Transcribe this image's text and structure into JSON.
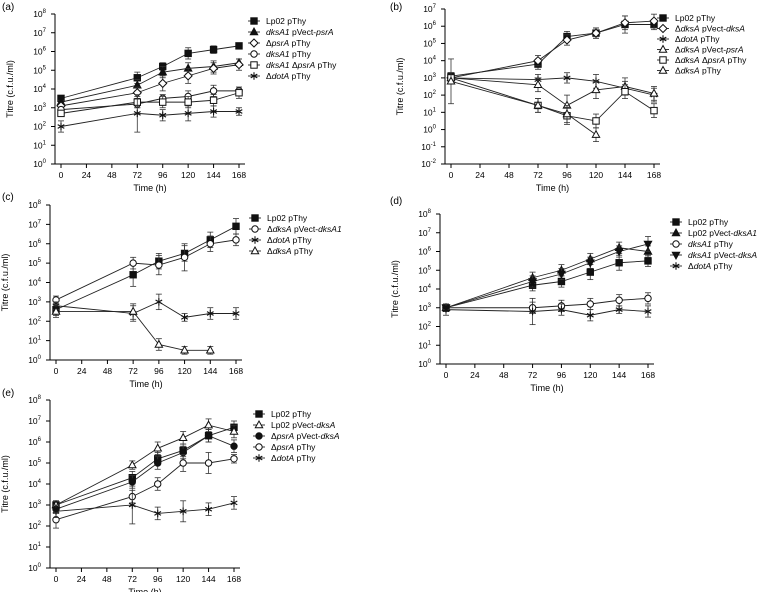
{
  "chart_data": [
    {
      "type": "line",
      "panel_label": "(a)",
      "ylabel": "Titre (c.f.u./ml)",
      "xlabel": "Time (h)",
      "x_ticks": [
        0,
        24,
        48,
        72,
        96,
        120,
        144,
        168
      ],
      "y_exponents": [
        0,
        1,
        2,
        3,
        4,
        5,
        6,
        7,
        8
      ],
      "ylim_log10": [
        0,
        8
      ],
      "series": [
        {
          "legend": [
            "Lp02 pThy"
          ],
          "marker": "square-filled",
          "x": [
            0,
            72,
            96,
            120,
            144,
            168
          ],
          "log10": [
            3.5,
            4.6,
            5.2,
            5.9,
            6.1,
            6.3
          ],
          "err": [
            0.1,
            0.3,
            0.2,
            0.3,
            0.2,
            0.1
          ]
        },
        {
          "legend": [
            "",
            "dksA1",
            " pVect-",
            "psrA"
          ],
          "marker": "triangle-filled",
          "x": [
            0,
            72,
            96,
            120,
            144,
            168
          ],
          "log10": [
            3.3,
            4.2,
            4.9,
            5.1,
            5.2,
            5.4
          ],
          "err": [
            0.1,
            0.3,
            0.3,
            0.3,
            0.3,
            0.2
          ]
        },
        {
          "legend": [
            "Δ",
            "psrA",
            " pThy"
          ],
          "marker": "diamond-open",
          "x": [
            0,
            72,
            96,
            120,
            144,
            168
          ],
          "log10": [
            3.1,
            3.8,
            4.3,
            4.7,
            5.1,
            5.3
          ],
          "err": [
            0.1,
            0.3,
            0.4,
            0.4,
            0.3,
            0.3
          ]
        },
        {
          "legend": [
            "",
            "dksA1",
            " pThy"
          ],
          "marker": "circle-open",
          "x": [
            0,
            72,
            96,
            120,
            144,
            168
          ],
          "log10": [
            2.9,
            3.2,
            3.5,
            3.6,
            3.9,
            3.9
          ],
          "err": [
            0.1,
            0.2,
            0.2,
            0.3,
            0.3,
            0.2
          ]
        },
        {
          "legend": [
            "",
            "dksA1",
            " Δ",
            "psrA",
            " pThy"
          ],
          "marker": "square-open",
          "x": [
            0,
            72,
            96,
            120,
            144,
            168
          ],
          "log10": [
            2.7,
            3.3,
            3.3,
            3.3,
            3.4,
            3.8
          ],
          "err": [
            0.1,
            0.3,
            0.3,
            0.3,
            0.3,
            0.3
          ]
        },
        {
          "legend": [
            "Δ",
            "dotA",
            " pThy"
          ],
          "marker": "star",
          "x": [
            0,
            72,
            96,
            120,
            144,
            168
          ],
          "log10": [
            2.0,
            2.7,
            2.6,
            2.7,
            2.8,
            2.8
          ],
          "err": [
            0.3,
            1.0,
            0.3,
            0.4,
            0.3,
            0.2
          ]
        }
      ]
    },
    {
      "type": "line",
      "panel_label": "(b)",
      "ylabel": "Titre (c.f.u./ml)",
      "xlabel": "Time (h)",
      "x_ticks": [
        0,
        24,
        48,
        72,
        96,
        120,
        144,
        168
      ],
      "y_exponents": [
        -2,
        -1,
        0,
        1,
        2,
        3,
        4,
        5,
        6,
        7
      ],
      "ylim_log10": [
        -2,
        7
      ],
      "series": [
        {
          "legend": [
            "Lp02 pThy"
          ],
          "marker": "square-filled",
          "x": [
            0,
            72,
            96,
            120,
            144,
            168
          ],
          "log10": [
            3.1,
            3.8,
            5.4,
            5.6,
            6.1,
            6.1
          ],
          "err": [
            0.2,
            0.3,
            0.3,
            0.3,
            0.5,
            0.3
          ]
        },
        {
          "legend": [
            "Δ",
            "dksA",
            " pVect-",
            "dksA"
          ],
          "marker": "diamond-open",
          "x": [
            0,
            72,
            96,
            120,
            144,
            168
          ],
          "log10": [
            3.0,
            4.0,
            5.2,
            5.6,
            6.2,
            6.3
          ],
          "err": [
            0.2,
            0.3,
            0.3,
            0.3,
            0.4,
            0.4
          ]
        },
        {
          "legend": [
            "Δ",
            "dotA",
            " pThy"
          ],
          "marker": "star",
          "x": [
            0,
            72,
            96,
            120,
            144,
            168
          ],
          "log10": [
            3.0,
            2.9,
            3.0,
            2.8,
            2.4,
            2.0
          ],
          "err": [
            0.2,
            0.3,
            0.3,
            0.4,
            0.4,
            0.4
          ]
        },
        {
          "legend": [
            "Δ",
            "dksA",
            " pVect-",
            "psrA"
          ],
          "marker": "triangle-open",
          "x": [
            0,
            72,
            96,
            120,
            144,
            168
          ],
          "log10": [
            3.0,
            2.6,
            1.4,
            2.3,
            2.5,
            2.1
          ],
          "err": [
            0.3,
            0.4,
            0.6,
            0.5,
            0.5,
            0.4
          ]
        },
        {
          "legend": [
            "Δ",
            "dksA",
            " Δ",
            "psrA",
            " pThy"
          ],
          "marker": "square-open",
          "x": [
            0,
            72,
            96,
            120,
            144,
            168
          ],
          "log10": [
            3.0,
            1.4,
            0.8,
            0.5,
            2.2,
            1.1
          ],
          "err": [
            0.3,
            0.4,
            0.5,
            0.4,
            0.4,
            0.4
          ]
        },
        {
          "legend": [
            "Δ",
            "dksA",
            " pThy"
          ],
          "marker": "triangle-open",
          "x": [
            0,
            72,
            96,
            120
          ],
          "log10": [
            2.8,
            1.4,
            0.9,
            -0.3
          ],
          "err": [
            1.3,
            0.4,
            0.5,
            0.4
          ]
        }
      ]
    },
    {
      "type": "line",
      "panel_label": "(c)",
      "ylabel": "Titre (c.f.u./ml)",
      "xlabel": "Time (h)",
      "x_ticks": [
        0,
        24,
        48,
        72,
        96,
        120,
        144,
        168
      ],
      "y_exponents": [
        0,
        1,
        2,
        3,
        4,
        5,
        6,
        7,
        8
      ],
      "ylim_log10": [
        0,
        8
      ],
      "series": [
        {
          "legend": [
            "Lp02 pThy"
          ],
          "marker": "square-filled",
          "x": [
            0,
            72,
            96,
            120,
            144,
            168
          ],
          "log10": [
            2.6,
            4.4,
            5.1,
            5.5,
            6.2,
            6.9
          ],
          "err": [
            0.3,
            0.6,
            0.4,
            0.4,
            0.4,
            0.4
          ]
        },
        {
          "legend": [
            "Δ",
            "dksA",
            " pVect-",
            "dksA1"
          ],
          "marker": "circle-open",
          "x": [
            0,
            72,
            96,
            120,
            144,
            168
          ],
          "log10": [
            3.1,
            5.0,
            4.9,
            5.3,
            6.0,
            6.2
          ],
          "err": [
            0.2,
            0.3,
            0.5,
            0.7,
            0.4,
            0.3
          ]
        },
        {
          "legend": [
            "Δ",
            "dotA",
            " pThy"
          ],
          "marker": "star",
          "x": [
            0,
            72,
            96,
            120,
            144,
            168
          ],
          "log10": [
            2.8,
            2.4,
            3.0,
            2.2,
            2.4,
            2.4
          ],
          "err": [
            0.2,
            0.4,
            0.4,
            0.2,
            0.3,
            0.3
          ]
        },
        {
          "legend": [
            "Δ",
            "dksA",
            " pThy"
          ],
          "marker": "triangle-open",
          "x": [
            0,
            72,
            96,
            120,
            144
          ],
          "log10": [
            2.5,
            2.5,
            0.8,
            0.5,
            0.5
          ],
          "err": [
            0.3,
            0.4,
            0.3,
            0.2,
            0.2
          ]
        }
      ]
    },
    {
      "type": "line",
      "panel_label": "(d)",
      "ylabel": "Titre (c.f.u./ml)",
      "xlabel": "Time (h)",
      "x_ticks": [
        0,
        24,
        48,
        72,
        96,
        120,
        144,
        168
      ],
      "y_exponents": [
        0,
        1,
        2,
        3,
        4,
        5,
        6,
        7,
        8
      ],
      "ylim_log10": [
        0,
        8
      ],
      "series": [
        {
          "legend": [
            "Lp02 pThy"
          ],
          "marker": "square-filled",
          "x": [
            0,
            72,
            96,
            120,
            144,
            168
          ],
          "log10": [
            3.0,
            4.2,
            4.4,
            4.9,
            5.4,
            5.5
          ],
          "err": [
            0.2,
            0.3,
            0.3,
            0.4,
            0.4,
            0.3
          ]
        },
        {
          "legend": [
            "Lp02 pVect-",
            "dksA1"
          ],
          "marker": "triangle-filled",
          "x": [
            0,
            72,
            96,
            120,
            144,
            168
          ],
          "log10": [
            3.0,
            4.6,
            5.0,
            5.6,
            6.2,
            6.0
          ],
          "err": [
            0.2,
            0.3,
            0.3,
            0.3,
            0.3,
            0.3
          ]
        },
        {
          "legend": [
            "",
            "dksA1",
            " pThy"
          ],
          "marker": "circle-open",
          "x": [
            0,
            72,
            96,
            120,
            144,
            168
          ],
          "log10": [
            3.0,
            3.0,
            3.1,
            3.2,
            3.4,
            3.5
          ],
          "err": [
            0.2,
            0.3,
            0.3,
            0.3,
            0.3,
            0.3
          ]
        },
        {
          "legend": [
            "",
            "dksA1",
            " pVect-",
            "dksA"
          ],
          "marker": "triangle-down-filled",
          "x": [
            0,
            72,
            96,
            120,
            144,
            168
          ],
          "log10": [
            3.0,
            4.4,
            4.8,
            5.4,
            6.0,
            6.4
          ],
          "err": [
            0.2,
            0.3,
            0.3,
            0.3,
            0.3,
            0.4
          ]
        },
        {
          "legend": [
            "Δ",
            "dotA",
            " pThy"
          ],
          "marker": "star",
          "x": [
            0,
            72,
            96,
            120,
            144,
            168
          ],
          "log10": [
            2.9,
            2.8,
            2.9,
            2.6,
            2.9,
            2.8
          ],
          "err": [
            0.3,
            0.7,
            0.3,
            0.3,
            0.2,
            0.3
          ]
        }
      ]
    },
    {
      "type": "line",
      "panel_label": "(e)",
      "ylabel": "Titre (c.f.u./ml)",
      "xlabel": "Time (h)",
      "x_ticks": [
        0,
        24,
        48,
        72,
        96,
        120,
        144,
        168
      ],
      "y_exponents": [
        0,
        1,
        2,
        3,
        4,
        5,
        6,
        7,
        8
      ],
      "ylim_log10": [
        0,
        8
      ],
      "series": [
        {
          "legend": [
            "Lp02 pThy"
          ],
          "marker": "square-filled",
          "x": [
            0,
            72,
            96,
            120,
            144,
            168
          ],
          "log10": [
            3.0,
            4.3,
            5.2,
            5.6,
            6.3,
            6.7
          ],
          "err": [
            0.2,
            0.3,
            0.3,
            0.3,
            0.3,
            0.3
          ]
        },
        {
          "legend": [
            "Lp02 pVect-",
            "dksA"
          ],
          "marker": "triangle-open",
          "x": [
            0,
            72,
            96,
            120,
            144,
            168
          ],
          "log10": [
            3.0,
            4.9,
            5.7,
            6.2,
            6.8,
            6.5
          ],
          "err": [
            0.2,
            0.2,
            0.3,
            0.3,
            0.3,
            0.3
          ]
        },
        {
          "legend": [
            "Δ",
            "psrA",
            " pVect-",
            "dksA"
          ],
          "marker": "circle-filled",
          "x": [
            0,
            72,
            96,
            120,
            144,
            168
          ],
          "log10": [
            2.8,
            4.1,
            5.0,
            5.5,
            6.3,
            5.8
          ],
          "err": [
            0.2,
            0.3,
            0.3,
            0.3,
            0.3,
            0.3
          ]
        },
        {
          "legend": [
            "Δ",
            "psrA",
            " pThy"
          ],
          "marker": "circle-open",
          "x": [
            0,
            72,
            96,
            120,
            144,
            168
          ],
          "log10": [
            2.3,
            3.4,
            4.0,
            5.0,
            5.0,
            5.2
          ],
          "err": [
            0.4,
            0.3,
            0.3,
            0.4,
            0.5,
            0.2
          ]
        },
        {
          "legend": [
            "Δ",
            "dotA",
            " pThy"
          ],
          "marker": "star",
          "x": [
            0,
            72,
            96,
            120,
            144,
            168
          ],
          "log10": [
            2.7,
            3.0,
            2.6,
            2.7,
            2.8,
            3.1
          ],
          "err": [
            0.3,
            0.9,
            0.3,
            0.5,
            0.3,
            0.3
          ]
        }
      ]
    }
  ]
}
